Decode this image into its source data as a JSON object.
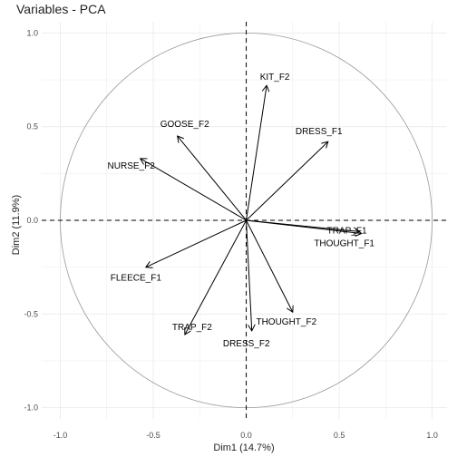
{
  "chart_data": {
    "type": "scatter",
    "subtype": "pca-variable-correlation-circle",
    "title": "Variables - PCA",
    "xlabel": "Dim1 (14.7%)",
    "ylabel": "Dim2 (11.9%)",
    "xlim": [
      -1.1,
      1.08
    ],
    "ylim": [
      -1.06,
      1.06
    ],
    "xticks": [
      -1.0,
      -0.5,
      0.0,
      0.5,
      1.0
    ],
    "xtick_labels": [
      "-1.0",
      "-0.5",
      "0.0",
      "0.5",
      "1.0"
    ],
    "yticks": [
      -1.0,
      -0.5,
      0.0,
      0.5,
      1.0
    ],
    "ytick_labels": [
      "-1.0",
      "-0.5",
      "0.0",
      "0.5",
      "1.0"
    ],
    "grid": true,
    "unit_circle": true,
    "reference_lines": [
      0,
      0
    ],
    "variables": [
      {
        "label": "KIT_F2",
        "x": 0.11,
        "y": 0.72
      },
      {
        "label": "GOOSE_F2",
        "x": -0.37,
        "y": 0.45
      },
      {
        "label": "DRESS_F1",
        "x": 0.44,
        "y": 0.42
      },
      {
        "label": "NURSE_F2",
        "x": -0.57,
        "y": 0.33
      },
      {
        "label": "TRAP_F1",
        "x": 0.61,
        "y": -0.06
      },
      {
        "label": "THOUGHT_F1",
        "x": 0.62,
        "y": -0.07
      },
      {
        "label": "FLEECE_F1",
        "x": -0.54,
        "y": -0.25
      },
      {
        "label": "THOUGHT_F2",
        "x": 0.25,
        "y": -0.49
      },
      {
        "label": "TRAP_F2",
        "x": -0.33,
        "y": -0.61
      },
      {
        "label": "DRESS_F2",
        "x": 0.03,
        "y": -0.59
      }
    ],
    "colors": {
      "arrow": "#000000",
      "circle": "#999999",
      "grid": "#ebebeb",
      "axis_text": "#4d4d4d"
    }
  }
}
